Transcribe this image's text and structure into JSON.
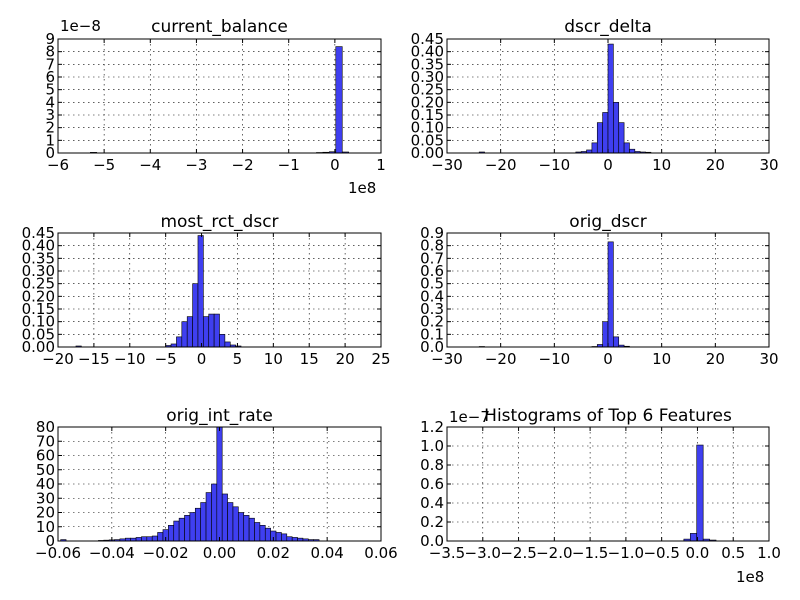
{
  "figure_title": "Histograms of Top 6 Features",
  "colors": {
    "bar_fill": "#3f3ff0",
    "bar_edge": "#000000",
    "background": "#ffffff"
  },
  "chart_data": [
    {
      "type": "bar",
      "title": "current_balance",
      "xlabel": "",
      "ylabel": "",
      "x_offset_label": "1e8",
      "y_offset_label": "1e−8",
      "xlim": [
        -6,
        1
      ],
      "ylim": [
        0,
        9
      ],
      "grid": true,
      "x_ticks": [
        -6,
        -5,
        -4,
        -3,
        -2,
        -1,
        0,
        1
      ],
      "x_tick_labels": [
        "−6",
        "−5",
        "−4",
        "−3",
        "−2",
        "−1",
        "0",
        "1"
      ],
      "y_ticks": [
        0,
        1,
        2,
        3,
        4,
        5,
        6,
        7,
        8,
        9
      ],
      "y_tick_labels": [
        "0",
        "1",
        "2",
        "3",
        "4",
        "5",
        "6",
        "7",
        "8",
        "9"
      ],
      "bins": [
        {
          "x0": -5.3,
          "x1": -5.16,
          "value": 0.05
        },
        {
          "x0": -0.4,
          "x1": -0.26,
          "value": 0.04
        },
        {
          "x0": -0.26,
          "x1": -0.12,
          "value": 0.06
        },
        {
          "x0": -0.12,
          "x1": 0.02,
          "value": 0.1
        },
        {
          "x0": 0.02,
          "x1": 0.16,
          "value": 8.4
        },
        {
          "x0": 0.16,
          "x1": 0.3,
          "value": 0.08
        }
      ]
    },
    {
      "type": "bar",
      "title": "dscr_delta",
      "xlabel": "",
      "ylabel": "",
      "xlim": [
        -30,
        30
      ],
      "ylim": [
        0,
        0.45
      ],
      "grid": true,
      "x_ticks": [
        -30,
        -20,
        -10,
        0,
        10,
        20,
        30
      ],
      "x_tick_labels": [
        "−30",
        "−20",
        "−10",
        "0",
        "10",
        "20",
        "30"
      ],
      "y_ticks": [
        0,
        0.05,
        0.1,
        0.15,
        0.2,
        0.25,
        0.3,
        0.35,
        0.4,
        0.45
      ],
      "y_tick_labels": [
        "0.00",
        "0.05",
        "0.10",
        "0.15",
        "0.20",
        "0.25",
        "0.30",
        "0.35",
        "0.40",
        "0.45"
      ],
      "bins": [
        {
          "x0": -24,
          "x1": -23,
          "value": 0.004
        },
        {
          "x0": -6,
          "x1": -5,
          "value": 0.004
        },
        {
          "x0": -5,
          "x1": -4,
          "value": 0.006
        },
        {
          "x0": -4,
          "x1": -3,
          "value": 0.012
        },
        {
          "x0": -3,
          "x1": -2,
          "value": 0.04
        },
        {
          "x0": -2,
          "x1": -1,
          "value": 0.12
        },
        {
          "x0": -1,
          "x1": 0,
          "value": 0.16
        },
        {
          "x0": 0,
          "x1": 1,
          "value": 0.43
        },
        {
          "x0": 1,
          "x1": 2,
          "value": 0.2
        },
        {
          "x0": 2,
          "x1": 3,
          "value": 0.12
        },
        {
          "x0": 3,
          "x1": 4,
          "value": 0.04
        },
        {
          "x0": 4,
          "x1": 5,
          "value": 0.015
        },
        {
          "x0": 5,
          "x1": 6,
          "value": 0.006
        },
        {
          "x0": 6,
          "x1": 7,
          "value": 0.004
        },
        {
          "x0": 7,
          "x1": 8,
          "value": 0.003
        }
      ]
    },
    {
      "type": "bar",
      "title": "most_rct_dscr",
      "xlabel": "",
      "ylabel": "",
      "xlim": [
        -20,
        25
      ],
      "ylim": [
        0,
        0.45
      ],
      "grid": true,
      "x_ticks": [
        -20,
        -15,
        -10,
        -5,
        0,
        5,
        10,
        15,
        20,
        25
      ],
      "x_tick_labels": [
        "−20",
        "−15",
        "−10",
        "−5",
        "0",
        "5",
        "10",
        "15",
        "20",
        "25"
      ],
      "y_ticks": [
        0,
        0.05,
        0.1,
        0.15,
        0.2,
        0.25,
        0.3,
        0.35,
        0.4,
        0.45
      ],
      "y_tick_labels": [
        "0.00",
        "0.05",
        "0.10",
        "0.15",
        "0.20",
        "0.25",
        "0.30",
        "0.35",
        "0.40",
        "0.45"
      ],
      "bins": [
        {
          "x0": -17.5,
          "x1": -16.75,
          "value": 0.004
        },
        {
          "x0": -5,
          "x1": -4.25,
          "value": 0.006
        },
        {
          "x0": -4.25,
          "x1": -3.5,
          "value": 0.012
        },
        {
          "x0": -3.5,
          "x1": -2.75,
          "value": 0.04
        },
        {
          "x0": -2.75,
          "x1": -2,
          "value": 0.1
        },
        {
          "x0": -2,
          "x1": -1.25,
          "value": 0.12
        },
        {
          "x0": -1.25,
          "x1": -0.5,
          "value": 0.25
        },
        {
          "x0": -0.5,
          "x1": 0.25,
          "value": 0.44
        },
        {
          "x0": 0.25,
          "x1": 1,
          "value": 0.12
        },
        {
          "x0": 1,
          "x1": 1.75,
          "value": 0.13
        },
        {
          "x0": 1.75,
          "x1": 2.5,
          "value": 0.13
        },
        {
          "x0": 2.5,
          "x1": 3.25,
          "value": 0.05
        },
        {
          "x0": 3.25,
          "x1": 4,
          "value": 0.02
        },
        {
          "x0": 4,
          "x1": 4.75,
          "value": 0.008
        },
        {
          "x0": 4.75,
          "x1": 5.5,
          "value": 0.004
        }
      ]
    },
    {
      "type": "bar",
      "title": "orig_dscr",
      "xlabel": "",
      "ylabel": "",
      "xlim": [
        -30,
        30
      ],
      "ylim": [
        0,
        0.9
      ],
      "grid": true,
      "x_ticks": [
        -30,
        -20,
        -10,
        0,
        10,
        20,
        30
      ],
      "x_tick_labels": [
        "−30",
        "−20",
        "−10",
        "0",
        "10",
        "20",
        "30"
      ],
      "y_ticks": [
        0,
        0.1,
        0.2,
        0.3,
        0.4,
        0.5,
        0.6,
        0.7,
        0.8,
        0.9
      ],
      "y_tick_labels": [
        "0.0",
        "0.1",
        "0.2",
        "0.3",
        "0.4",
        "0.5",
        "0.6",
        "0.7",
        "0.8",
        "0.9"
      ],
      "bins": [
        {
          "x0": -24,
          "x1": -23,
          "value": 0.004
        },
        {
          "x0": -3,
          "x1": -2,
          "value": 0.004
        },
        {
          "x0": -2,
          "x1": -1,
          "value": 0.02
        },
        {
          "x0": -1,
          "x1": 0,
          "value": 0.2
        },
        {
          "x0": 0,
          "x1": 1,
          "value": 0.83
        },
        {
          "x0": 1,
          "x1": 2,
          "value": 0.08
        },
        {
          "x0": 2,
          "x1": 3,
          "value": 0.015
        },
        {
          "x0": 3,
          "x1": 4,
          "value": 0.006
        }
      ]
    },
    {
      "type": "bar",
      "title": "orig_int_rate",
      "xlabel": "",
      "ylabel": "",
      "xlim": [
        -0.06,
        0.06
      ],
      "ylim": [
        0,
        80
      ],
      "grid": true,
      "x_ticks": [
        -0.06,
        -0.04,
        -0.02,
        0,
        0.02,
        0.04,
        0.06
      ],
      "x_tick_labels": [
        "−0.06",
        "−0.04",
        "−0.02",
        "0.00",
        "0.02",
        "0.04",
        "0.06"
      ],
      "y_ticks": [
        0,
        10,
        20,
        30,
        40,
        50,
        60,
        70,
        80
      ],
      "y_tick_labels": [
        "0",
        "10",
        "20",
        "30",
        "40",
        "50",
        "60",
        "70",
        "80"
      ],
      "bins": [
        {
          "x0": -0.059,
          "x1": -0.057,
          "value": 1
        },
        {
          "x0": -0.045,
          "x1": -0.043,
          "value": 0.4
        },
        {
          "x0": -0.043,
          "x1": -0.041,
          "value": 0.6
        },
        {
          "x0": -0.041,
          "x1": -0.039,
          "value": 0.8
        },
        {
          "x0": -0.039,
          "x1": -0.037,
          "value": 1
        },
        {
          "x0": -0.037,
          "x1": -0.035,
          "value": 1.5
        },
        {
          "x0": -0.035,
          "x1": -0.033,
          "value": 2
        },
        {
          "x0": -0.033,
          "x1": -0.031,
          "value": 2
        },
        {
          "x0": -0.031,
          "x1": -0.029,
          "value": 2.5
        },
        {
          "x0": -0.029,
          "x1": -0.027,
          "value": 3
        },
        {
          "x0": -0.027,
          "x1": -0.025,
          "value": 3
        },
        {
          "x0": -0.025,
          "x1": -0.023,
          "value": 3.5
        },
        {
          "x0": -0.023,
          "x1": -0.021,
          "value": 6
        },
        {
          "x0": -0.021,
          "x1": -0.019,
          "value": 8
        },
        {
          "x0": -0.019,
          "x1": -0.017,
          "value": 11
        },
        {
          "x0": -0.017,
          "x1": -0.015,
          "value": 14
        },
        {
          "x0": -0.015,
          "x1": -0.013,
          "value": 16
        },
        {
          "x0": -0.013,
          "x1": -0.011,
          "value": 18
        },
        {
          "x0": -0.011,
          "x1": -0.009,
          "value": 20
        },
        {
          "x0": -0.009,
          "x1": -0.007,
          "value": 23
        },
        {
          "x0": -0.007,
          "x1": -0.005,
          "value": 27
        },
        {
          "x0": -0.005,
          "x1": -0.003,
          "value": 34
        },
        {
          "x0": -0.003,
          "x1": -0.001,
          "value": 40
        },
        {
          "x0": -0.001,
          "x1": 0.001,
          "value": 80
        },
        {
          "x0": 0.001,
          "x1": 0.003,
          "value": 33
        },
        {
          "x0": 0.003,
          "x1": 0.005,
          "value": 27
        },
        {
          "x0": 0.005,
          "x1": 0.007,
          "value": 24
        },
        {
          "x0": 0.007,
          "x1": 0.009,
          "value": 20
        },
        {
          "x0": 0.009,
          "x1": 0.011,
          "value": 18
        },
        {
          "x0": 0.011,
          "x1": 0.013,
          "value": 16
        },
        {
          "x0": 0.013,
          "x1": 0.015,
          "value": 13
        },
        {
          "x0": 0.015,
          "x1": 0.017,
          "value": 11
        },
        {
          "x0": 0.017,
          "x1": 0.019,
          "value": 9
        },
        {
          "x0": 0.019,
          "x1": 0.021,
          "value": 7
        },
        {
          "x0": 0.021,
          "x1": 0.023,
          "value": 6
        },
        {
          "x0": 0.023,
          "x1": 0.025,
          "value": 5
        },
        {
          "x0": 0.025,
          "x1": 0.027,
          "value": 3
        },
        {
          "x0": 0.027,
          "x1": 0.029,
          "value": 2.5
        },
        {
          "x0": 0.029,
          "x1": 0.031,
          "value": 2
        },
        {
          "x0": 0.031,
          "x1": 0.033,
          "value": 1.5
        },
        {
          "x0": 0.033,
          "x1": 0.035,
          "value": 1
        },
        {
          "x0": 0.035,
          "x1": 0.037,
          "value": 1
        }
      ]
    },
    {
      "type": "bar",
      "title": "Histograms of Top 6 Features",
      "xlabel": "",
      "ylabel": "",
      "x_offset_label": "1e8",
      "y_offset_label": "1e−7",
      "xlim": [
        -3.5,
        1
      ],
      "ylim": [
        0,
        1.2
      ],
      "grid": true,
      "x_ticks": [
        -3.5,
        -3,
        -2.5,
        -2,
        -1.5,
        -1,
        -0.5,
        0,
        0.5,
        1
      ],
      "x_tick_labels": [
        "−3.5",
        "−3.0",
        "−2.5",
        "−2.0",
        "−1.5",
        "−1.0",
        "−0.5",
        "0.0",
        "0.5",
        "1.0"
      ],
      "y_ticks": [
        0,
        0.2,
        0.4,
        0.6,
        0.8,
        1.0,
        1.2
      ],
      "y_tick_labels": [
        "0.0",
        "0.2",
        "0.4",
        "0.6",
        "0.8",
        "1.0",
        "1.2"
      ],
      "bins": [
        {
          "x0": -0.19,
          "x1": -0.1,
          "value": 0.02
        },
        {
          "x0": -0.1,
          "x1": -0.01,
          "value": 0.08
        },
        {
          "x0": -0.01,
          "x1": 0.08,
          "value": 1.01
        },
        {
          "x0": 0.08,
          "x1": 0.17,
          "value": 0.02
        },
        {
          "x0": 0.17,
          "x1": 0.26,
          "value": 0.01
        }
      ]
    }
  ]
}
